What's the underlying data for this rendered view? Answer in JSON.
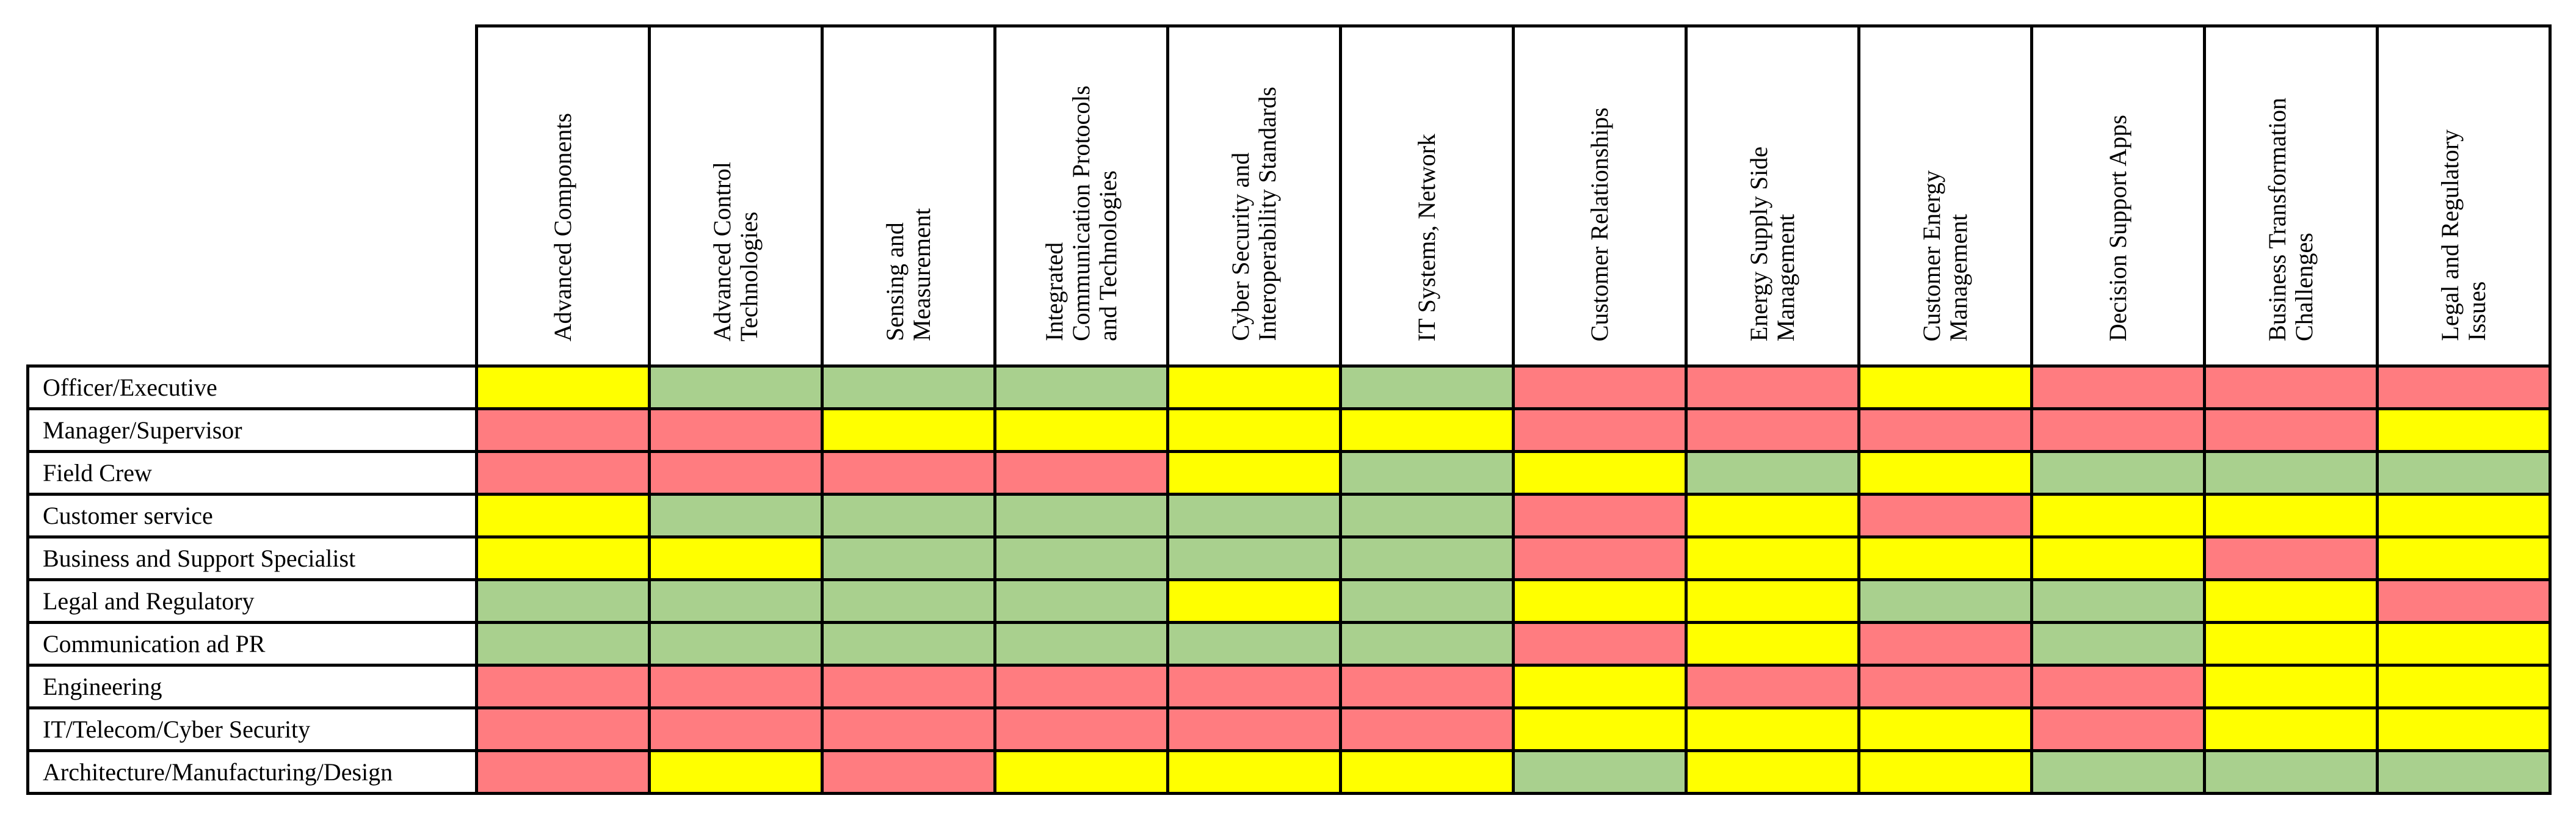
{
  "colors": {
    "red": "#ff7c80",
    "yellow": "#ffff00",
    "green": "#a9d08e"
  },
  "columns": [
    "Advanced Components",
    "Advanced Control\nTechnologies",
    "Sensing and\nMeasurement",
    "Integrated\nCommunication Protocols\nand Technologies",
    "Cyber Security and\nInteroperability Standards",
    "IT Systems, Network",
    "Customer Relationships",
    "Energy Supply Side\nManagement",
    "Customer Energy\nManagement",
    "Decision Support Apps",
    "Business Transformation\nChallenges",
    "Legal and Regulatory\nIssues"
  ],
  "rows": [
    {
      "label": "Officer/Executive",
      "cells": [
        "yellow",
        "green",
        "green",
        "green",
        "yellow",
        "green",
        "red",
        "red",
        "yellow",
        "red",
        "red",
        "red"
      ]
    },
    {
      "label": "Manager/Supervisor",
      "cells": [
        "red",
        "red",
        "yellow",
        "yellow",
        "yellow",
        "yellow",
        "red",
        "red",
        "red",
        "red",
        "red",
        "yellow"
      ]
    },
    {
      "label": "Field Crew",
      "cells": [
        "red",
        "red",
        "red",
        "red",
        "yellow",
        "green",
        "yellow",
        "green",
        "yellow",
        "green",
        "green",
        "green"
      ]
    },
    {
      "label": "Customer service",
      "cells": [
        "yellow",
        "green",
        "green",
        "green",
        "green",
        "green",
        "red",
        "yellow",
        "red",
        "yellow",
        "yellow",
        "yellow"
      ]
    },
    {
      "label": "Business and Support Specialist",
      "cells": [
        "yellow",
        "yellow",
        "green",
        "green",
        "green",
        "green",
        "red",
        "yellow",
        "yellow",
        "yellow",
        "red",
        "yellow"
      ]
    },
    {
      "label": "Legal and Regulatory",
      "cells": [
        "green",
        "green",
        "green",
        "green",
        "yellow",
        "green",
        "yellow",
        "yellow",
        "green",
        "green",
        "yellow",
        "red"
      ]
    },
    {
      "label": "Communication ad PR",
      "cells": [
        "green",
        "green",
        "green",
        "green",
        "green",
        "green",
        "red",
        "yellow",
        "red",
        "green",
        "yellow",
        "yellow"
      ]
    },
    {
      "label": "Engineering",
      "cells": [
        "red",
        "red",
        "red",
        "red",
        "red",
        "red",
        "yellow",
        "red",
        "red",
        "red",
        "yellow",
        "yellow"
      ]
    },
    {
      "label": "IT/Telecom/Cyber Security",
      "cells": [
        "red",
        "red",
        "red",
        "red",
        "red",
        "red",
        "yellow",
        "yellow",
        "yellow",
        "red",
        "yellow",
        "yellow"
      ]
    },
    {
      "label": "Architecture/Manufacturing/Design",
      "cells": [
        "red",
        "yellow",
        "red",
        "yellow",
        "yellow",
        "yellow",
        "green",
        "yellow",
        "yellow",
        "green",
        "green",
        "green"
      ]
    }
  ]
}
